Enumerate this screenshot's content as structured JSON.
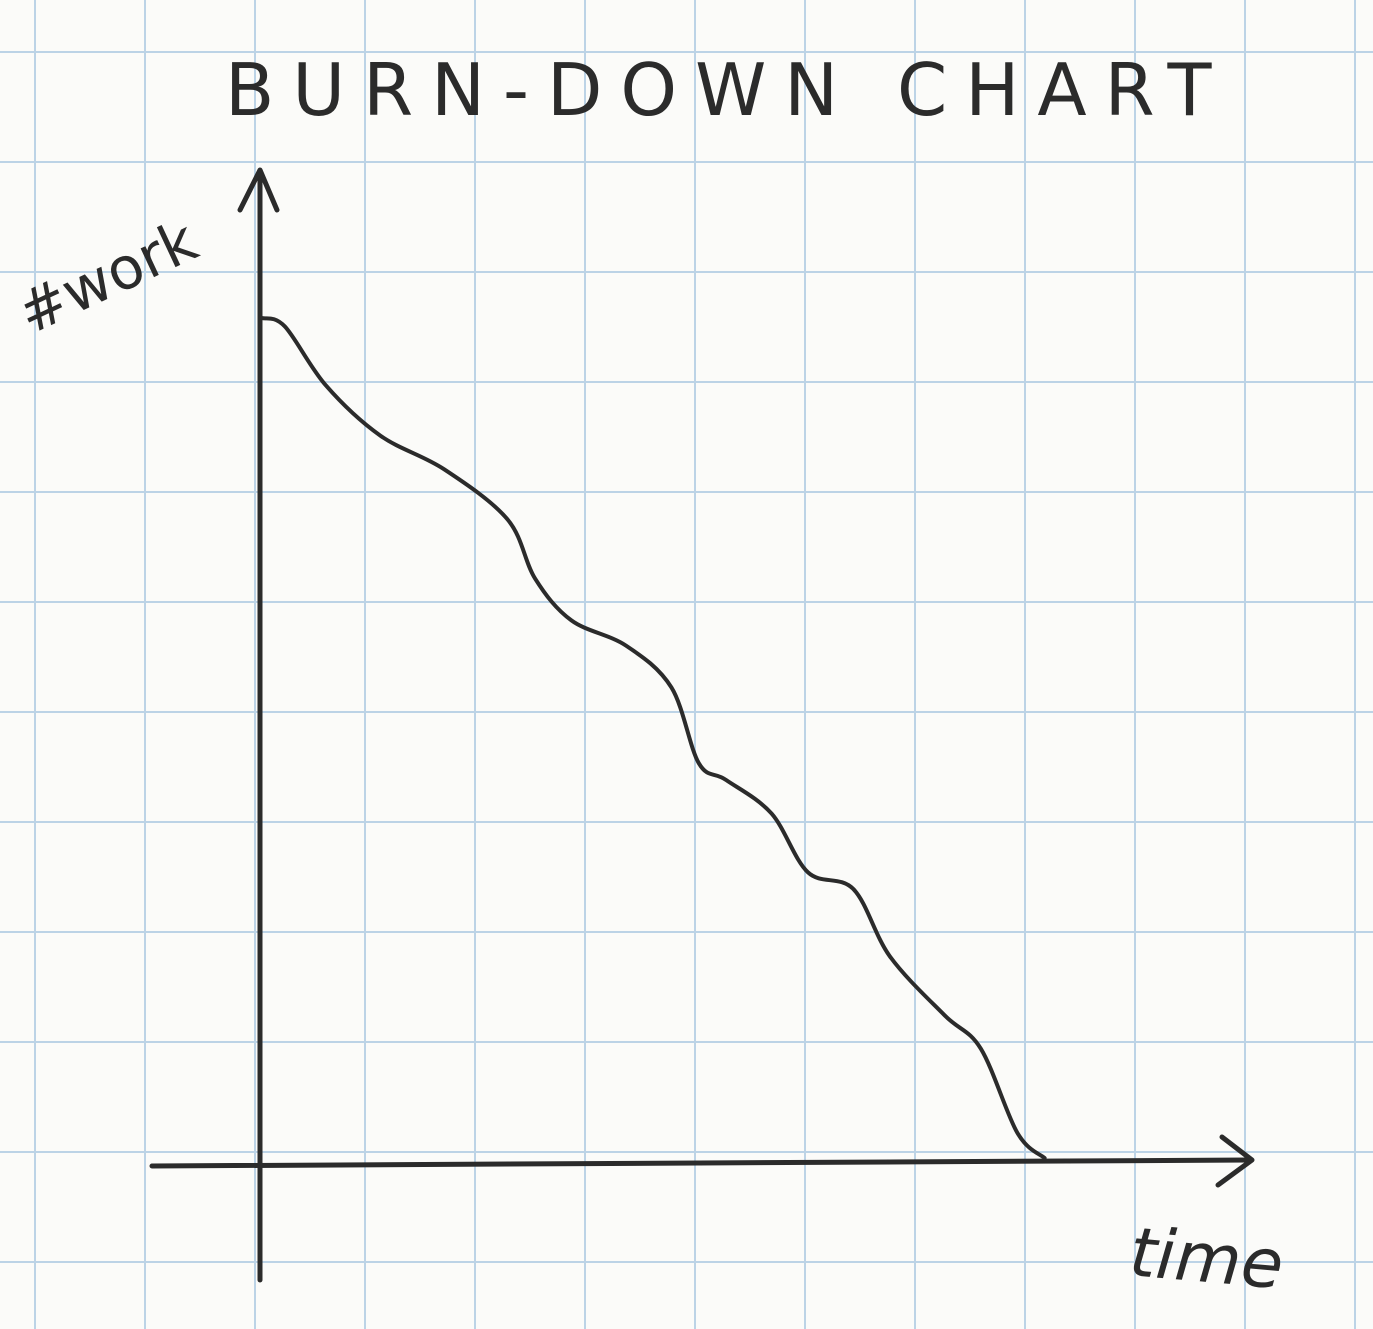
{
  "colors": {
    "paper": "#fbfbf9",
    "grid": "#bcd3e6",
    "ink": "#2b2b2b"
  },
  "chart_data": {
    "type": "line",
    "title": "BURN-DOWN CHART",
    "xlabel": "time",
    "ylabel": "#work",
    "grid": true,
    "legend": "none",
    "xlim": [
      0,
      10
    ],
    "ylim": [
      0,
      10
    ],
    "series": [
      {
        "x": [
          0,
          0.25,
          0.7,
          1.3,
          2.0,
          2.7,
          3.0,
          3.4,
          4.0,
          4.5,
          4.8,
          5.1,
          5.6,
          6.0,
          6.5,
          6.9,
          7.5,
          7.9,
          8.3,
          8.6
        ],
        "values": [
          10.0,
          9.9,
          9.2,
          8.6,
          8.2,
          7.6,
          6.9,
          6.4,
          6.1,
          5.6,
          4.7,
          4.5,
          4.1,
          3.4,
          3.2,
          2.4,
          1.7,
          1.3,
          0.3,
          0.0
        ]
      }
    ]
  }
}
